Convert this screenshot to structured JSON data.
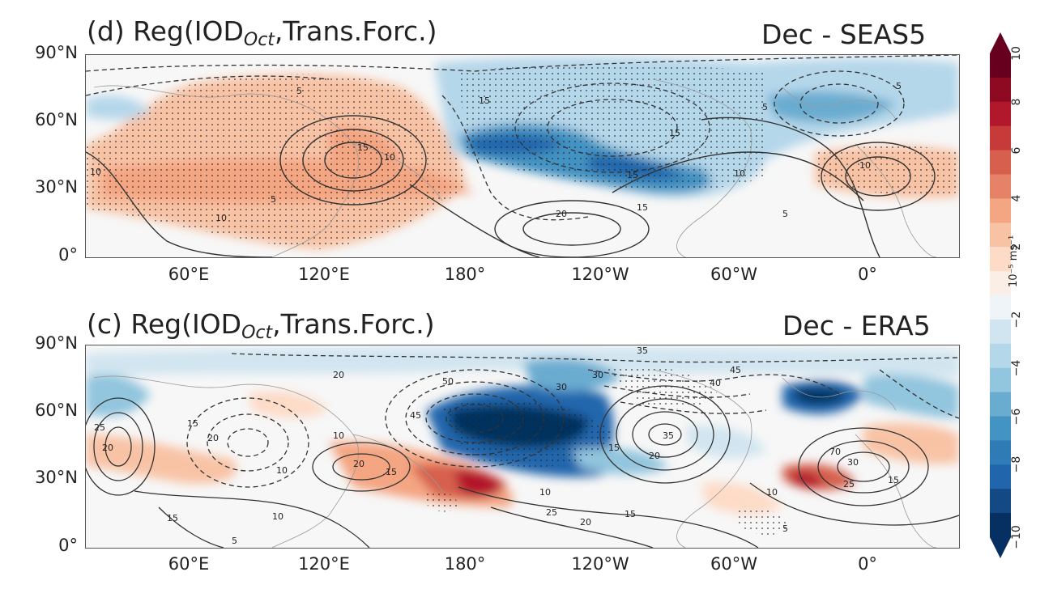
{
  "panels": [
    {
      "id": "d",
      "title_prefix": "(d) Reg(IOD",
      "title_sub": "Oct",
      "title_suffix": ",Trans.Forc.)",
      "right_title": "Dec - SEAS5",
      "y_labels": [
        "90°N",
        "60°N",
        "30°N",
        "0°"
      ],
      "x_labels": [
        "60°E",
        "120°E",
        "180°",
        "120°W",
        "60°W",
        "0°"
      ],
      "contour_labels": [
        "5",
        "15",
        "10",
        "10",
        "5",
        "15",
        "20",
        "10",
        "15",
        "15",
        "10",
        "5",
        "5",
        "15",
        "10",
        "5"
      ]
    },
    {
      "id": "c",
      "title_prefix": "(c) Reg(IOD",
      "title_sub": "Oct",
      "title_suffix": ",Trans.Forc.)",
      "right_title": "Dec - ERA5",
      "y_labels": [
        "90°N",
        "60°N",
        "30°N",
        "0°"
      ],
      "x_labels": [
        "60°E",
        "120°E",
        "180°",
        "120°W",
        "60°W",
        "0°"
      ],
      "contour_labels": [
        "35",
        "45",
        "50",
        "30",
        "40",
        "20",
        "15",
        "20",
        "45",
        "10",
        "35",
        "20",
        "20",
        "15",
        "10",
        "15",
        "25",
        "20",
        "15",
        "10",
        "5",
        "70",
        "30",
        "25",
        "15",
        "10",
        "15",
        "20",
        "25",
        "10",
        "5",
        "30"
      ]
    }
  ],
  "colorbar": {
    "ticks": [
      "10",
      "8",
      "6",
      "4",
      "2",
      "−2",
      "−4",
      "−6",
      "−8",
      "−10"
    ],
    "unit_label": "10⁻⁵ ms⁻¹",
    "levels": [
      10,
      9,
      8,
      7,
      6,
      5,
      4,
      3,
      2,
      1,
      -1,
      -2,
      -3,
      -4,
      -5,
      -6,
      -7,
      -8,
      -9,
      -10
    ],
    "colors": [
      "#67001f",
      "#8e0a22",
      "#b2182b",
      "#c73a3a",
      "#d6604d",
      "#e58268",
      "#f4a582",
      "#f8c3a5",
      "#fddbc7",
      "#fbeee6",
      "#eef4f8",
      "#d1e5f0",
      "#b5d7ea",
      "#92c5de",
      "#6aacd0",
      "#4393c3",
      "#2f7bb6",
      "#2166ac",
      "#134a86",
      "#053061"
    ]
  }
}
